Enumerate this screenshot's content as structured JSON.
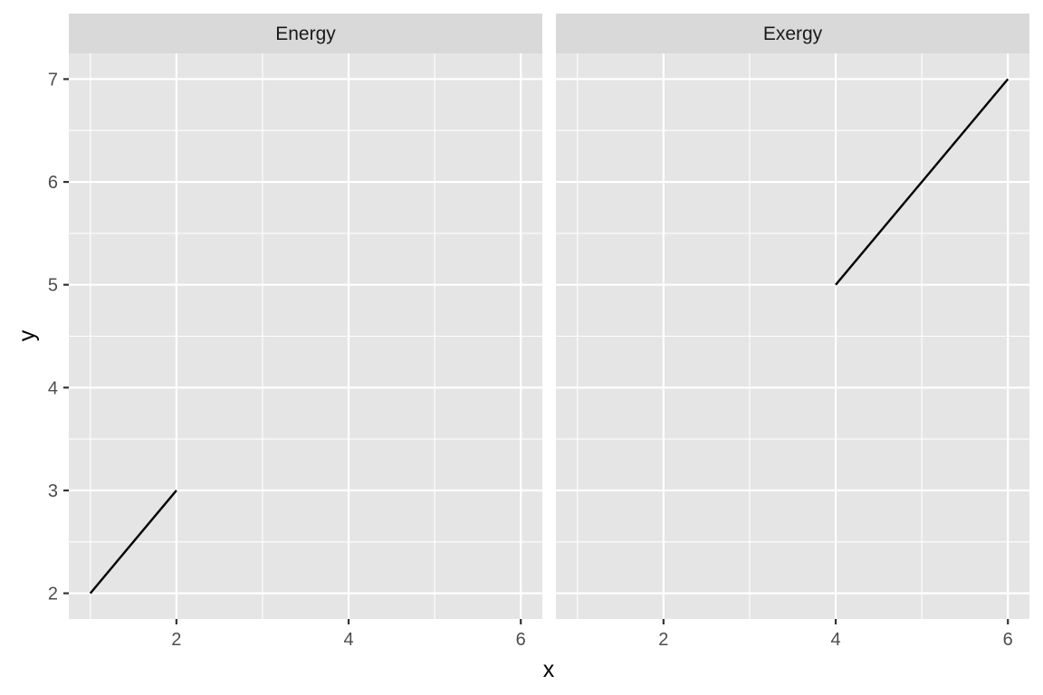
{
  "chart_data": {
    "type": "line",
    "facet_layout": "side-by-side",
    "xlabel": "x",
    "ylabel": "y",
    "xlim": [
      0.75,
      6.25
    ],
    "ylim": [
      1.75,
      7.25
    ],
    "x_ticks": [
      2,
      4,
      6
    ],
    "y_ticks": [
      2,
      3,
      4,
      5,
      6,
      7
    ],
    "grid": true,
    "line_color": "#000000",
    "panels": [
      {
        "title": "Energy",
        "x": [
          1,
          2
        ],
        "y": [
          2,
          3
        ]
      },
      {
        "title": "Exergy",
        "x": [
          4,
          6
        ],
        "y": [
          5,
          7
        ]
      }
    ]
  }
}
